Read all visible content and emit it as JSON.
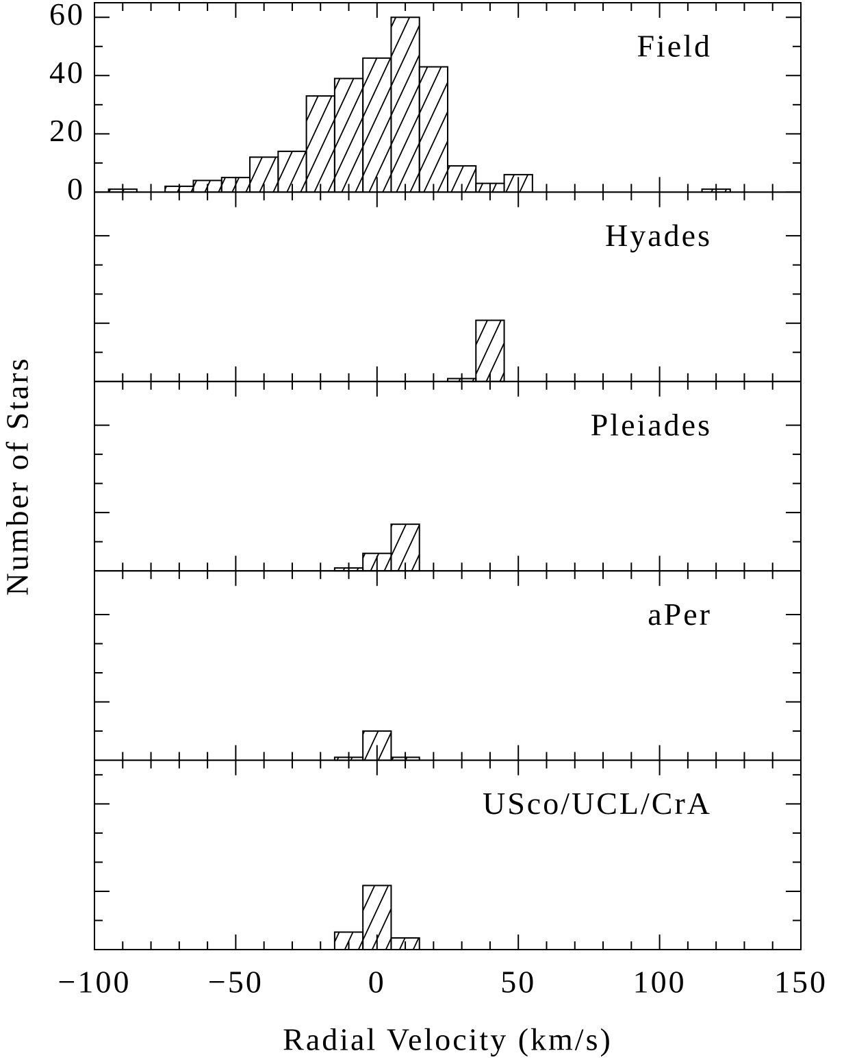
{
  "chart_data": [
    {
      "type": "histogram",
      "annotation": "Field",
      "ylabel": "Number of Stars",
      "bins": [
        -95,
        -85,
        -75,
        -65,
        -55,
        -45,
        -35,
        -25,
        -15,
        -5,
        5,
        15,
        25,
        35,
        45,
        55,
        65,
        75,
        85,
        95,
        105,
        115,
        125
      ],
      "values": [
        1,
        0,
        2,
        4,
        5,
        12,
        14,
        33,
        39,
        46,
        60,
        43,
        9,
        3,
        6,
        0,
        0,
        0,
        0,
        0,
        0,
        1
      ],
      "xlim": [
        -100,
        150
      ],
      "xticks": [
        -100,
        -50,
        0,
        50,
        100,
        150
      ],
      "x_minor_ticks": [
        -90,
        -80,
        -70,
        -60,
        -40,
        -30,
        -20,
        -10,
        10,
        20,
        30,
        40,
        60,
        70,
        80,
        90,
        110,
        120,
        130,
        140
      ],
      "ylim": [
        0,
        65
      ],
      "yticks": [
        0,
        20,
        40,
        60
      ],
      "y_minor_ticks": [
        10,
        30,
        50
      ],
      "ytick_labels": true,
      "xtick_labels": false,
      "hatch": true,
      "color": "#000000"
    },
    {
      "type": "histogram",
      "annotation": "Hyades",
      "bins": [
        25,
        35,
        45
      ],
      "values": [
        1,
        21
      ],
      "xlim": [
        -100,
        150
      ],
      "xticks": [
        -100,
        -50,
        0,
        50,
        100,
        150
      ],
      "x_minor_ticks": [
        -90,
        -80,
        -70,
        -60,
        -40,
        -30,
        -20,
        -10,
        10,
        20,
        30,
        40,
        60,
        70,
        80,
        90,
        110,
        120,
        130,
        140
      ],
      "ylim": [
        0,
        65
      ],
      "yticks": [
        20,
        50
      ],
      "y_minor_ticks": [
        10,
        30,
        40
      ],
      "ytick_labels": false,
      "xtick_labels": false,
      "hatch": true,
      "color": "#000000"
    },
    {
      "type": "histogram",
      "annotation": "Pleiades",
      "bins": [
        -15,
        -5,
        5,
        15
      ],
      "values": [
        1,
        6,
        16
      ],
      "xlim": [
        -100,
        150
      ],
      "xticks": [
        -100,
        -50,
        0,
        50,
        100,
        150
      ],
      "x_minor_ticks": [
        -90,
        -80,
        -70,
        -60,
        -40,
        -30,
        -20,
        -10,
        10,
        20,
        30,
        40,
        60,
        70,
        80,
        90,
        110,
        120,
        130,
        140
      ],
      "ylim": [
        0,
        65
      ],
      "yticks": [
        20,
        50
      ],
      "y_minor_ticks": [
        10,
        30,
        40
      ],
      "ytick_labels": false,
      "xtick_labels": false,
      "hatch": true,
      "color": "#000000"
    },
    {
      "type": "histogram",
      "annotation": "aPer",
      "bins": [
        -15,
        -5,
        5,
        15
      ],
      "values": [
        1,
        10,
        1
      ],
      "xlim": [
        -100,
        150
      ],
      "xticks": [
        -100,
        -50,
        0,
        50,
        100,
        150
      ],
      "x_minor_ticks": [
        -90,
        -80,
        -70,
        -60,
        -40,
        -30,
        -20,
        -10,
        10,
        20,
        30,
        40,
        60,
        70,
        80,
        90,
        110,
        120,
        130,
        140
      ],
      "ylim": [
        0,
        65
      ],
      "yticks": [
        20,
        50
      ],
      "y_minor_ticks": [
        10,
        30,
        40
      ],
      "ytick_labels": false,
      "xtick_labels": false,
      "hatch": true,
      "color": "#000000"
    },
    {
      "type": "histogram",
      "annotation": "USco/UCL/CrA",
      "xlabel": "Radial Velocity (km/s)",
      "bins": [
        -15,
        -5,
        5,
        15
      ],
      "values": [
        6,
        22,
        4
      ],
      "xlim": [
        -100,
        150
      ],
      "xticks": [
        {
          "value": -100,
          "label": "−100"
        },
        {
          "value": -50,
          "label": "−50"
        },
        0,
        50,
        100,
        150
      ],
      "x_minor_ticks": [
        -90,
        -80,
        -70,
        -60,
        -40,
        -30,
        -20,
        -10,
        10,
        20,
        30,
        40,
        60,
        70,
        80,
        90,
        110,
        120,
        130,
        140
      ],
      "ylim": [
        0,
        65
      ],
      "yticks": [
        20,
        50
      ],
      "y_minor_ticks": [
        10,
        30,
        40,
        60
      ],
      "ytick_labels": false,
      "xtick_labels": true,
      "hatch": true,
      "color": "#000000"
    }
  ]
}
